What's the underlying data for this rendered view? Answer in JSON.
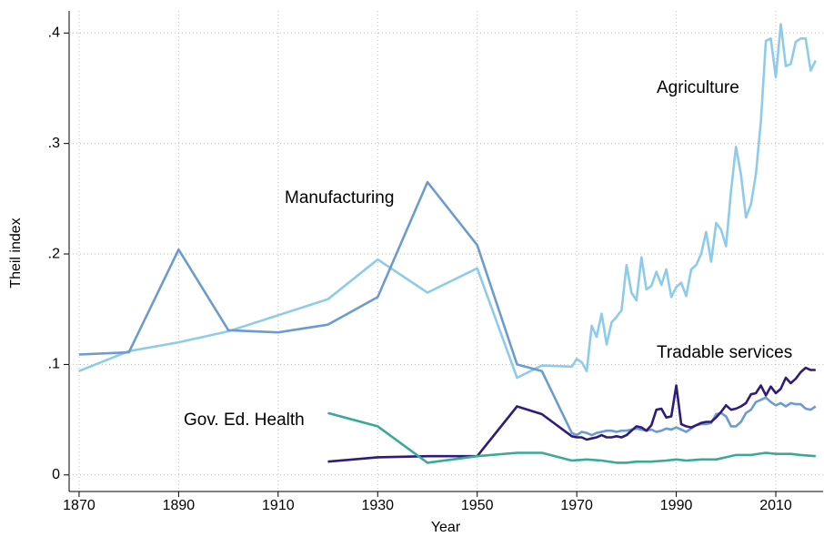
{
  "chart_data": {
    "type": "line",
    "x_label": "Year",
    "y_label": "Theil index",
    "xlim": [
      1868,
      2019.5
    ],
    "ylim": [
      -0.015,
      0.42
    ],
    "xticks": [
      1870,
      1890,
      1910,
      1930,
      1950,
      1970,
      1990,
      2010
    ],
    "yticks": [
      0,
      {
        "value": 0.1,
        "label": ".1"
      },
      {
        "value": 0.2,
        "label": ".2"
      },
      {
        "value": 0.3,
        "label": ".3"
      },
      {
        "value": 0.4,
        "label": ".4"
      }
    ],
    "grid": true,
    "series": [
      {
        "name": "Agriculture",
        "color": "#8ecbea",
        "x": [
          1870,
          1880,
          1890,
          1900,
          1920,
          1930,
          1940,
          1950,
          1958,
          1963,
          1969,
          1970,
          1971,
          1972,
          1973,
          1974,
          1975,
          1976,
          1977,
          1978,
          1979,
          1980,
          1981,
          1982,
          1983,
          1984,
          1985,
          1986,
          1987,
          1988,
          1989,
          1990,
          1991,
          1992,
          1993,
          1994,
          1995,
          1996,
          1997,
          1998,
          1999,
          2000,
          2001,
          2002,
          2003,
          2004,
          2005,
          2006,
          2007,
          2008,
          2009,
          2010,
          2011,
          2012,
          2013,
          2014,
          2015,
          2016,
          2017,
          2018
        ],
        "values": [
          0.094,
          0.112,
          0.12,
          0.13,
          0.159,
          0.195,
          0.165,
          0.187,
          0.088,
          0.099,
          0.098,
          0.105,
          0.102,
          0.094,
          0.135,
          0.125,
          0.146,
          0.118,
          0.138,
          0.143,
          0.149,
          0.19,
          0.165,
          0.158,
          0.197,
          0.168,
          0.171,
          0.184,
          0.172,
          0.186,
          0.161,
          0.17,
          0.174,
          0.162,
          0.186,
          0.19,
          0.2,
          0.22,
          0.193,
          0.228,
          0.222,
          0.207,
          0.257,
          0.297,
          0.272,
          0.233,
          0.245,
          0.272,
          0.32,
          0.393,
          0.395,
          0.36,
          0.408,
          0.37,
          0.372,
          0.392,
          0.395,
          0.395,
          0.366,
          0.375
        ]
      },
      {
        "name": "Manufacturing",
        "color": "#6b9ccd",
        "x": [
          1870,
          1880,
          1890,
          1900,
          1910,
          1920,
          1930,
          1940,
          1950,
          1958,
          1963,
          1969,
          1970,
          1971,
          1972,
          1973,
          1974,
          1975,
          1976,
          1977,
          1978,
          1979,
          1980,
          1981,
          1982,
          1983,
          1984,
          1985,
          1986,
          1987,
          1988,
          1989,
          1990,
          1991,
          1992,
          1993,
          1994,
          1995,
          1996,
          1997,
          1998,
          1999,
          2000,
          2001,
          2002,
          2003,
          2004,
          2005,
          2006,
          2007,
          2008,
          2009,
          2010,
          2011,
          2012,
          2013,
          2014,
          2015,
          2016,
          2017,
          2018
        ],
        "values": [
          0.109,
          0.111,
          0.204,
          0.131,
          0.129,
          0.136,
          0.161,
          0.265,
          0.208,
          0.1,
          0.094,
          0.038,
          0.036,
          0.039,
          0.038,
          0.036,
          0.038,
          0.039,
          0.04,
          0.04,
          0.039,
          0.04,
          0.04,
          0.041,
          0.042,
          0.041,
          0.04,
          0.041,
          0.039,
          0.04,
          0.042,
          0.041,
          0.043,
          0.041,
          0.039,
          0.042,
          0.045,
          0.046,
          0.046,
          0.047,
          0.055,
          0.056,
          0.053,
          0.044,
          0.044,
          0.048,
          0.056,
          0.059,
          0.066,
          0.068,
          0.07,
          0.066,
          0.063,
          0.065,
          0.062,
          0.065,
          0.064,
          0.064,
          0.06,
          0.059,
          0.062
        ]
      },
      {
        "name": "Tradable services",
        "color": "#2e1c78",
        "x": [
          1920,
          1930,
          1940,
          1950,
          1958,
          1963,
          1969,
          1970,
          1971,
          1972,
          1973,
          1974,
          1975,
          1976,
          1977,
          1978,
          1979,
          1980,
          1981,
          1982,
          1983,
          1984,
          1985,
          1986,
          1987,
          1988,
          1989,
          1990,
          1991,
          1992,
          1993,
          1994,
          1995,
          1996,
          1997,
          1998,
          1999,
          2000,
          2001,
          2002,
          2003,
          2004,
          2005,
          2006,
          2007,
          2008,
          2009,
          2010,
          2011,
          2012,
          2013,
          2014,
          2015,
          2016,
          2017,
          2018
        ],
        "values": [
          0.012,
          0.016,
          0.017,
          0.017,
          0.062,
          0.055,
          0.035,
          0.034,
          0.034,
          0.032,
          0.033,
          0.034,
          0.036,
          0.034,
          0.034,
          0.035,
          0.034,
          0.036,
          0.04,
          0.044,
          0.043,
          0.04,
          0.045,
          0.059,
          0.06,
          0.052,
          0.053,
          0.081,
          0.046,
          0.044,
          0.043,
          0.045,
          0.047,
          0.048,
          0.048,
          0.052,
          0.057,
          0.063,
          0.059,
          0.06,
          0.062,
          0.065,
          0.073,
          0.074,
          0.081,
          0.072,
          0.08,
          0.074,
          0.078,
          0.088,
          0.083,
          0.087,
          0.093,
          0.097,
          0.095,
          0.095
        ]
      },
      {
        "name": "Gov. Ed. Health",
        "color": "#3aa995",
        "x": [
          1920,
          1930,
          1940,
          1950,
          1958,
          1963,
          1969,
          1972,
          1975,
          1978,
          1980,
          1982,
          1985,
          1988,
          1990,
          1992,
          1995,
          1998,
          2000,
          2002,
          2005,
          2008,
          2010,
          2013,
          2015,
          2018
        ],
        "values": [
          0.056,
          0.044,
          0.011,
          0.017,
          0.02,
          0.02,
          0.013,
          0.014,
          0.013,
          0.011,
          0.011,
          0.012,
          0.012,
          0.013,
          0.014,
          0.013,
          0.014,
          0.014,
          0.016,
          0.018,
          0.018,
          0.02,
          0.019,
          0.019,
          0.018,
          0.017
        ]
      }
    ]
  }
}
